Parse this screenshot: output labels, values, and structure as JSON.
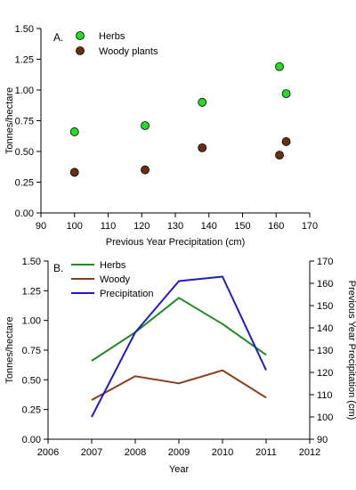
{
  "chart_data": [
    {
      "type": "scatter",
      "panel_label": "A.",
      "xlabel": "Previous Year Precipitation (cm)",
      "ylabel": "Tonnes/hectare",
      "xlim": [
        90,
        170
      ],
      "ylim": [
        0,
        1.5
      ],
      "xticks": [
        "90",
        "100",
        "110",
        "120",
        "130",
        "140",
        "150",
        "160",
        "170"
      ],
      "yticks": [
        "0.00",
        "0.25",
        "0.50",
        "0.75",
        "1.00",
        "1.25",
        "1.50"
      ],
      "grid": false,
      "legend_position": "top-left",
      "series": [
        {
          "name": "Herbs",
          "color": "#22dd22",
          "points": [
            [
              100,
              0.66
            ],
            [
              121,
              0.71
            ],
            [
              138,
              0.9
            ],
            [
              161,
              1.19
            ],
            [
              163,
              0.97
            ]
          ]
        },
        {
          "name": "Woody plants",
          "color": "#6b2e12",
          "points": [
            [
              100,
              0.33
            ],
            [
              121,
              0.35
            ],
            [
              138,
              0.53
            ],
            [
              161,
              0.47
            ],
            [
              163,
              0.58
            ]
          ]
        }
      ]
    },
    {
      "type": "line",
      "panel_label": "B.",
      "xlabel": "Year",
      "ylabel": "Tonnes/hectare",
      "y2label": "Previous Year Precipitation (cm)",
      "xlim": [
        2006,
        2012
      ],
      "ylim": [
        0,
        1.5
      ],
      "y2lim": [
        90,
        170
      ],
      "xticks": [
        "2006",
        "2007",
        "2008",
        "2009",
        "2010",
        "2011",
        "2012"
      ],
      "yticks": [
        "0.00",
        "0.25",
        "0.50",
        "0.75",
        "1.00",
        "1.25",
        "1.50"
      ],
      "y2ticks": [
        "90",
        "100",
        "110",
        "120",
        "130",
        "140",
        "150",
        "160",
        "170"
      ],
      "grid": false,
      "legend_position": "top-left",
      "x": [
        2007,
        2008,
        2009,
        2010,
        2011
      ],
      "series": [
        {
          "name": "Herbs",
          "color": "#1e8c1e",
          "axis": "left",
          "values": [
            0.66,
            0.9,
            1.19,
            0.97,
            0.71
          ]
        },
        {
          "name": "Woody",
          "color": "#8b3a1a",
          "axis": "left",
          "values": [
            0.33,
            0.53,
            0.47,
            0.58,
            0.35
          ]
        },
        {
          "name": "Precipitation",
          "color": "#1c1cc8",
          "axis": "right",
          "values": [
            100,
            138,
            161,
            163,
            121
          ]
        }
      ]
    }
  ]
}
